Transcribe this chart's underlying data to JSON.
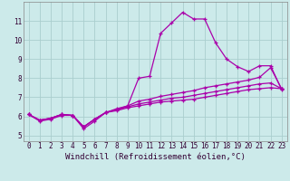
{
  "xlabel": "Windchill (Refroidissement éolien,°C)",
  "background_color": "#cceaea",
  "grid_color": "#aacece",
  "line_color": "#aa00aa",
  "xlim": [
    -0.5,
    23.5
  ],
  "ylim": [
    4.7,
    12.0
  ],
  "xticks": [
    0,
    1,
    2,
    3,
    4,
    5,
    6,
    7,
    8,
    9,
    10,
    11,
    12,
    13,
    14,
    15,
    16,
    17,
    18,
    19,
    20,
    21,
    22,
    23
  ],
  "yticks": [
    5,
    6,
    7,
    8,
    9,
    10,
    11
  ],
  "curve1_x": [
    0,
    1,
    2,
    3,
    4,
    5,
    6,
    7,
    8,
    9,
    10,
    11,
    12,
    13,
    14,
    15,
    16,
    17,
    18,
    19,
    20,
    21,
    22,
    23
  ],
  "curve1_y": [
    6.1,
    5.75,
    5.85,
    6.05,
    6.05,
    5.35,
    5.75,
    6.2,
    6.35,
    6.55,
    8.0,
    8.1,
    10.35,
    10.9,
    11.45,
    11.1,
    11.1,
    9.85,
    9.0,
    8.6,
    8.35,
    8.65,
    8.65,
    7.4
  ],
  "curve2_x": [
    0,
    1,
    2,
    3,
    4,
    5,
    6,
    7,
    8,
    9,
    10,
    11,
    12,
    13,
    14,
    15,
    16,
    17,
    18,
    19,
    20,
    21,
    22,
    23
  ],
  "curve2_y": [
    6.1,
    5.8,
    5.9,
    6.1,
    6.05,
    5.45,
    5.85,
    6.2,
    6.4,
    6.55,
    6.8,
    6.9,
    7.05,
    7.15,
    7.25,
    7.35,
    7.5,
    7.6,
    7.7,
    7.8,
    7.9,
    8.05,
    8.55,
    7.45
  ],
  "curve3_x": [
    0,
    1,
    2,
    3,
    4,
    5,
    6,
    7,
    8,
    9,
    10,
    11,
    12,
    13,
    14,
    15,
    16,
    17,
    18,
    19,
    20,
    21,
    22,
    23
  ],
  "curve3_y": [
    6.1,
    5.8,
    5.9,
    6.1,
    6.05,
    5.45,
    5.85,
    6.2,
    6.35,
    6.5,
    6.65,
    6.75,
    6.85,
    6.95,
    7.0,
    7.1,
    7.2,
    7.3,
    7.4,
    7.5,
    7.6,
    7.7,
    7.75,
    7.45
  ],
  "curve4_x": [
    0,
    1,
    2,
    3,
    4,
    5,
    6,
    7,
    8,
    9,
    10,
    11,
    12,
    13,
    14,
    15,
    16,
    17,
    18,
    19,
    20,
    21,
    22,
    23
  ],
  "curve4_y": [
    6.1,
    5.8,
    5.9,
    6.1,
    6.05,
    5.45,
    5.85,
    6.2,
    6.3,
    6.45,
    6.55,
    6.65,
    6.75,
    6.8,
    6.85,
    6.9,
    7.0,
    7.1,
    7.2,
    7.3,
    7.4,
    7.45,
    7.5,
    7.45
  ],
  "tick_fontsize": 5.5,
  "xlabel_fontsize": 6.5
}
